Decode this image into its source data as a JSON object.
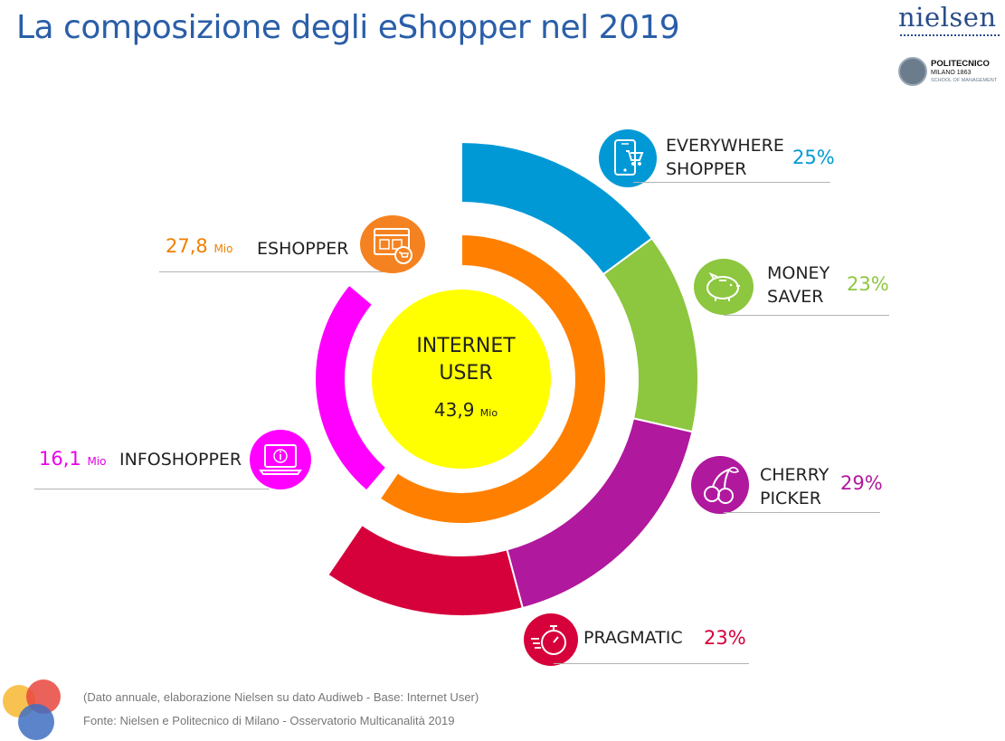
{
  "title": "La composizione degli eShopper nel 2019",
  "brand": {
    "nielsen": "nielsen",
    "poli_name": "POLITECNICO",
    "poli_sub": "MILANO 1863",
    "poli_sub2": "SCHOOL OF MANAGEMENT"
  },
  "center": {
    "label_line1": "INTERNET",
    "label_line2": "USER",
    "value": "43,9",
    "unit": "Mio",
    "color": "#ffff00"
  },
  "eshopper": {
    "value": "27,8",
    "unit": "Mio",
    "label": "ESHOPPER",
    "color": "#ff8000",
    "icon": "shopping-screen-icon"
  },
  "infoshopper": {
    "value": "16,1",
    "unit": "Mio",
    "label": "INFOSHOPPER",
    "color": "#ff00ff",
    "icon": "info-laptop-icon"
  },
  "segments": [
    {
      "line1": "EVERYWHERE",
      "line2": "SHOPPER",
      "pct": "25%",
      "color": "#0099d6",
      "icon": "smartphone-cart-icon"
    },
    {
      "line1": "MONEY",
      "line2": "SAVER",
      "pct": "23%",
      "color": "#8dc63f",
      "icon": "piggy-bank-icon"
    },
    {
      "line1": "CHERRY",
      "line2": "PICKER",
      "pct": "29%",
      "color": "#b0189e",
      "icon": "cherry-icon"
    },
    {
      "line1": "PRAGMATIC",
      "line2": "",
      "pct": "23%",
      "color": "#d6003a",
      "icon": "stopwatch-icon"
    }
  ],
  "notes": {
    "line1": "(Dato annuale, elaborazione Nielsen su dato Audiweb - Base: Internet User)",
    "line2": "Fonte: Nielsen e Politecnico di Milano - Osservatorio Multicanalità 2019"
  },
  "chart_data": {
    "type": "pie",
    "center": {
      "name": "INTERNET USER",
      "value": 43.9,
      "unit": "Mio"
    },
    "level1": [
      {
        "name": "ESHOPPER",
        "value": 27.8,
        "unit": "Mio"
      },
      {
        "name": "INFOSHOPPER",
        "value": 16.1,
        "unit": "Mio"
      }
    ],
    "level2_eshopper_breakdown": {
      "categories": [
        "EVERYWHERE SHOPPER",
        "MONEY SAVER",
        "CHERRY PICKER",
        "PRAGMATIC"
      ],
      "values": [
        25,
        23,
        29,
        23
      ],
      "unit": "%"
    }
  }
}
